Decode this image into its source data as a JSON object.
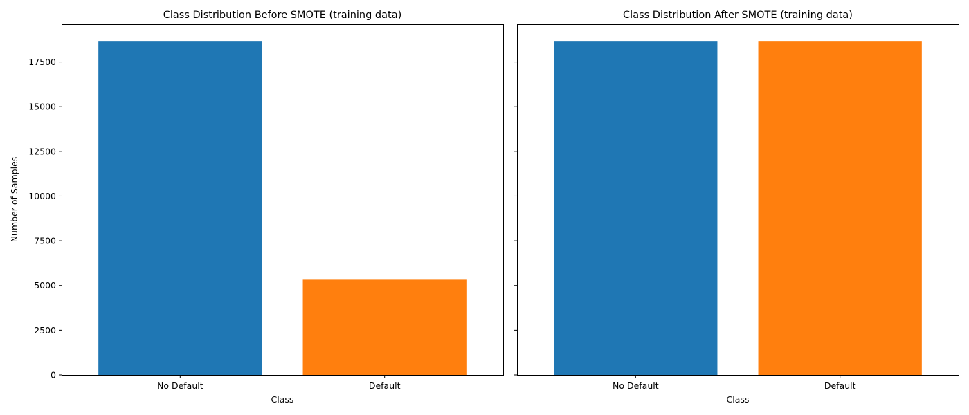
{
  "chart_data": [
    {
      "type": "bar",
      "title": "Class Distribution Before SMOTE (training data)",
      "xlabel": "Class",
      "ylabel": "Number of Samples",
      "categories": [
        "No Default",
        "Default"
      ],
      "values": [
        18677,
        5323
      ],
      "colors": [
        "#1f77b4",
        "#ff7f0e"
      ],
      "ylim": [
        0,
        19611
      ],
      "yticks": [
        0,
        2500,
        5000,
        7500,
        10000,
        12500,
        15000,
        17500
      ],
      "show_ytick_labels": true,
      "grid": false
    },
    {
      "type": "bar",
      "title": "Class Distribution After SMOTE (training data)",
      "xlabel": "Class",
      "ylabel": "",
      "categories": [
        "No Default",
        "Default"
      ],
      "values": [
        18677,
        18677
      ],
      "colors": [
        "#1f77b4",
        "#ff7f0e"
      ],
      "ylim": [
        0,
        19611
      ],
      "yticks": [
        0,
        2500,
        5000,
        7500,
        10000,
        12500,
        15000,
        17500
      ],
      "show_ytick_labels": false,
      "grid": false
    }
  ]
}
